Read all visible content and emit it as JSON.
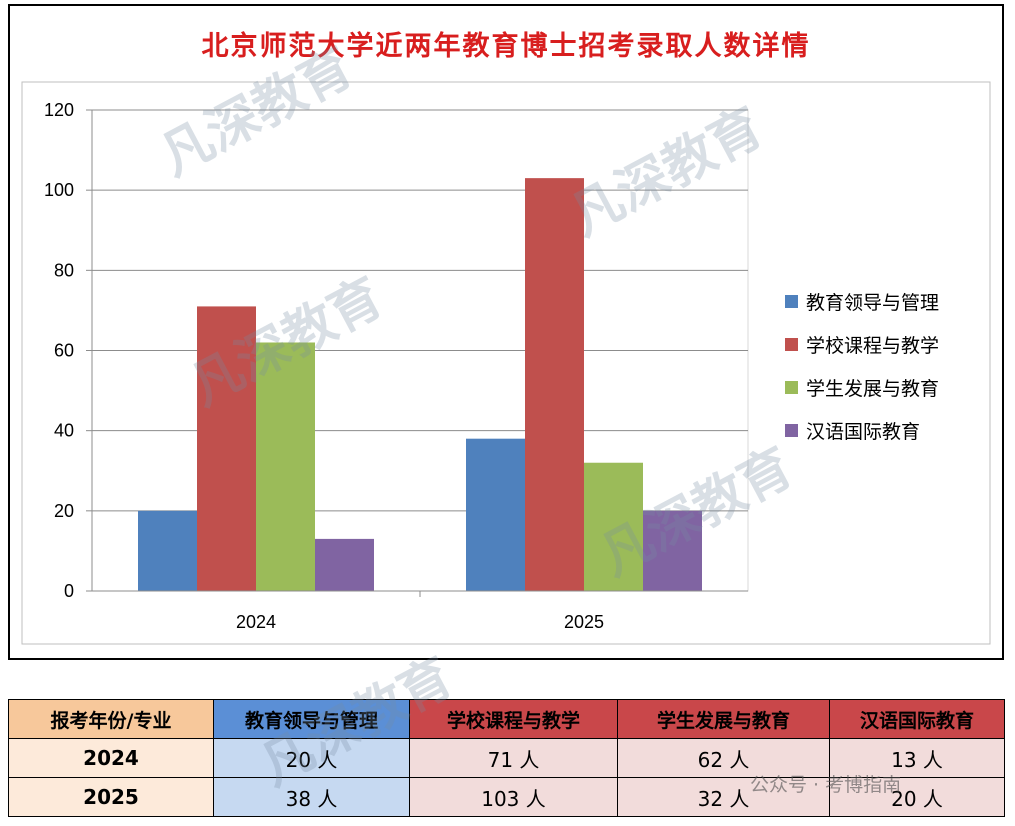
{
  "chart_data": {
    "type": "bar",
    "title": "北京师范大学近两年教育博士招考录取人数详情",
    "categories": [
      "2024",
      "2025"
    ],
    "series": [
      {
        "name": "教育领导与管理",
        "color": "#4f81bd",
        "values": [
          20,
          38
        ]
      },
      {
        "name": "学校课程与教学",
        "color": "#c0504d",
        "values": [
          71,
          103
        ]
      },
      {
        "name": "学生发展与教育",
        "color": "#9bbb59",
        "values": [
          62,
          32
        ]
      },
      {
        "name": "汉语国际教育",
        "color": "#8064a2",
        "values": [
          13,
          20
        ]
      }
    ],
    "ylim": [
      0,
      120
    ],
    "yticks": [
      "0",
      "20",
      "40",
      "60",
      "80",
      "100",
      "120"
    ],
    "grid": true,
    "legend": "right"
  },
  "table": {
    "header": [
      "报考年份/专业",
      "教育领导与管理",
      "学校课程与教学",
      "学生发展与教育",
      "汉语国际教育"
    ],
    "rows": [
      {
        "year": "2024",
        "cells": [
          "20 人",
          "71 人",
          "62 人",
          "13 人"
        ]
      },
      {
        "year": "2025",
        "cells": [
          "38 人",
          "103 人",
          "32 人",
          "20 人"
        ]
      }
    ]
  },
  "watermark": {
    "text": "凡深教育"
  },
  "credit": "公众号 · 考博指南"
}
